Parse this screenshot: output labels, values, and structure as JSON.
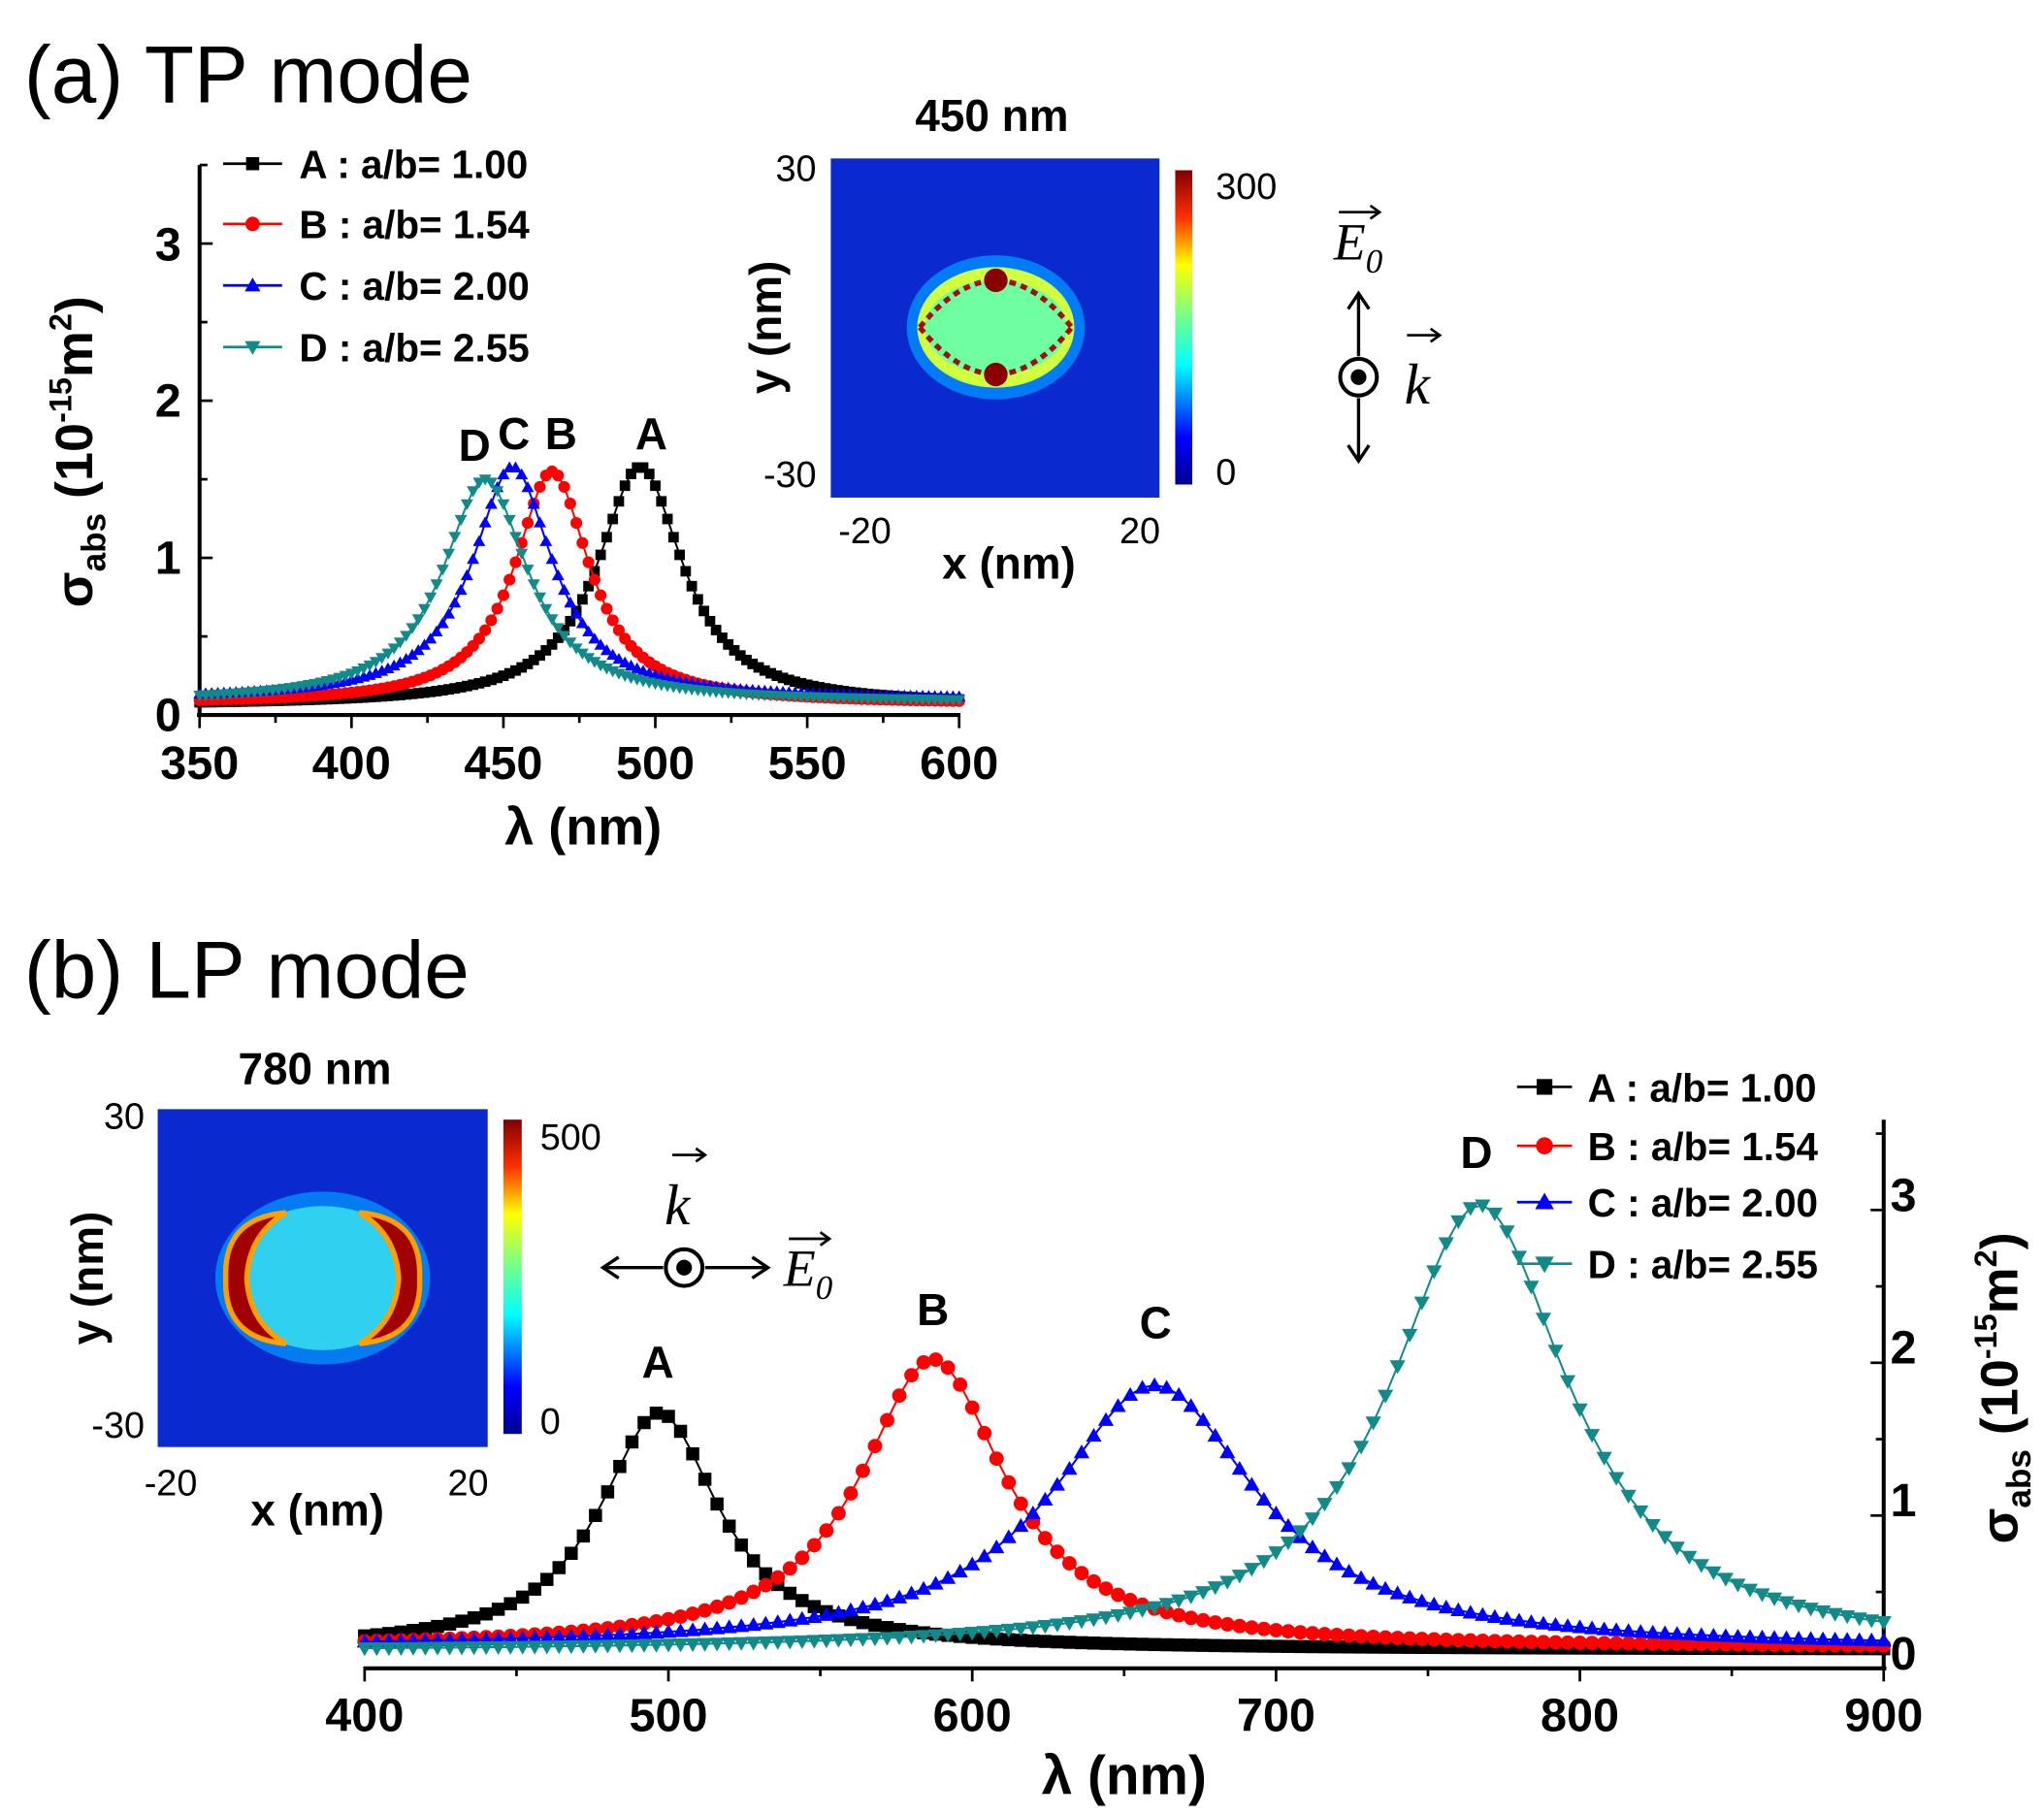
{
  "chart_data": [
    {
      "type": "line",
      "title": "(a) TP mode",
      "xlabel": "λ (nm)",
      "ylabel_parts": [
        "σ",
        "abs",
        " (10",
        "-15",
        "m",
        "2",
        ")"
      ],
      "xlim": [
        350,
        600
      ],
      "ylim": [
        0,
        3.5
      ],
      "xticks": [
        "350",
        "400",
        "450",
        "500",
        "550",
        "600"
      ],
      "yticks": [
        "0",
        "1",
        "2",
        "3"
      ],
      "legend_position": "top-left",
      "series": [
        {
          "name": "A : a/b= 1.00",
          "peak_label": "A",
          "color": "#000000",
          "marker": "square",
          "peak_nm": 495,
          "peak_value": 1.58,
          "fwhm_nm": 34,
          "baseline": 0.06
        },
        {
          "name": "B : a/b= 1.54",
          "peak_label": "B",
          "color": "#ff0000",
          "marker": "circle",
          "peak_nm": 466,
          "peak_value": 1.55,
          "fwhm_nm": 30,
          "baseline": 0.07
        },
        {
          "name": "C : a/b= 2.00",
          "peak_label": "C",
          "color": "#0000ff",
          "marker": "triangle-up",
          "peak_nm": 453,
          "peak_value": 1.58,
          "fwhm_nm": 32,
          "baseline": 0.1
        },
        {
          "name": "D : a/b= 2.55",
          "peak_label": "D",
          "color": "#138a8a",
          "marker": "triangle-down",
          "peak_nm": 444,
          "peak_value": 1.5,
          "fwhm_nm": 34,
          "baseline": 0.08
        }
      ],
      "inset": {
        "title": "450 nm",
        "xlabel": "x (nm)",
        "ylabel": "y (nm)",
        "xticks": [
          "-20",
          "20"
        ],
        "yticks": [
          "30",
          "-30"
        ],
        "colorbar_ticks": [
          "300",
          "0"
        ]
      },
      "field_labels": {
        "E": "E",
        "E_sub": "0",
        "k": "k"
      }
    },
    {
      "type": "line",
      "title": "(b) LP mode",
      "xlabel": "λ (nm)",
      "ylabel_parts": [
        "σ",
        "abs",
        " (10",
        "-15",
        "m",
        "2",
        ")"
      ],
      "xlim": [
        400,
        900
      ],
      "ylim": [
        0,
        3.5
      ],
      "xticks": [
        "400",
        "500",
        "600",
        "700",
        "800",
        "900"
      ],
      "yticks": [
        "0",
        "1",
        "2",
        "3"
      ],
      "legend_position": "top-right",
      "series": [
        {
          "name": "A : a/b= 1.00",
          "peak_label": "A",
          "color": "#000000",
          "marker": "square",
          "peak_nm": 497,
          "peak_value": 1.57,
          "fwhm_nm": 48,
          "baseline": 0.02
        },
        {
          "name": "B : a/b= 1.54",
          "peak_label": "B",
          "color": "#ff0000",
          "marker": "circle",
          "peak_nm": 587,
          "peak_value": 1.92,
          "fwhm_nm": 58,
          "baseline": 0.03
        },
        {
          "name": "C : a/b= 2.00",
          "peak_label": "C",
          "color": "#0000ff",
          "marker": "triangle-up",
          "peak_nm": 660,
          "peak_value": 1.75,
          "fwhm_nm": 82,
          "baseline": 0.03
        },
        {
          "name": "D : a/b= 2.55",
          "peak_label": "D",
          "color": "#138a8a",
          "marker": "triangle-down",
          "peak_nm": 767,
          "peak_value": 2.93,
          "fwhm_nm": 72,
          "baseline": 0.0
        }
      ],
      "inset": {
        "title": "780 nm",
        "xlabel": "x (nm)",
        "ylabel": "y (nm)",
        "xticks": [
          "-20",
          "20"
        ],
        "yticks": [
          "30",
          "-30"
        ],
        "colorbar_ticks": [
          "500",
          "0"
        ]
      },
      "field_labels": {
        "E": "E",
        "E_sub": "0",
        "k": "k"
      }
    }
  ]
}
